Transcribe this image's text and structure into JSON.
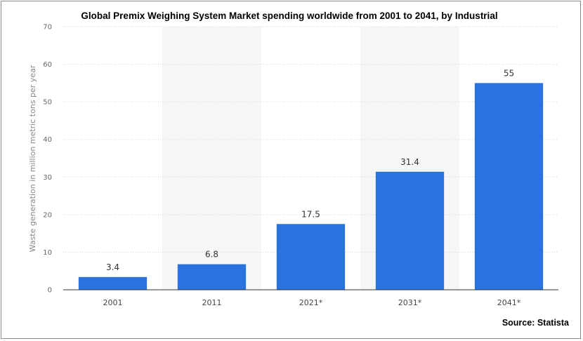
{
  "chart_data": {
    "type": "bar",
    "title": "Global Premix Weighing System Market spending worldwide from 2001 to 2041, by Industrial",
    "ylabel": "Waste generation in million metric tons per year",
    "xlabel": "",
    "categories": [
      "2001",
      "2011",
      "2021*",
      "2031*",
      "2041*"
    ],
    "values": [
      3.4,
      6.8,
      17.5,
      31.4,
      55
    ],
    "value_labels": [
      "3.4",
      "6.8",
      "17.5",
      "31.4",
      "55"
    ],
    "ylim": [
      0,
      70
    ],
    "yticks": [
      0,
      10,
      20,
      30,
      40,
      50,
      60,
      70
    ],
    "grid": true,
    "bar_color": "#2a72de",
    "source": "Source: Statista"
  }
}
